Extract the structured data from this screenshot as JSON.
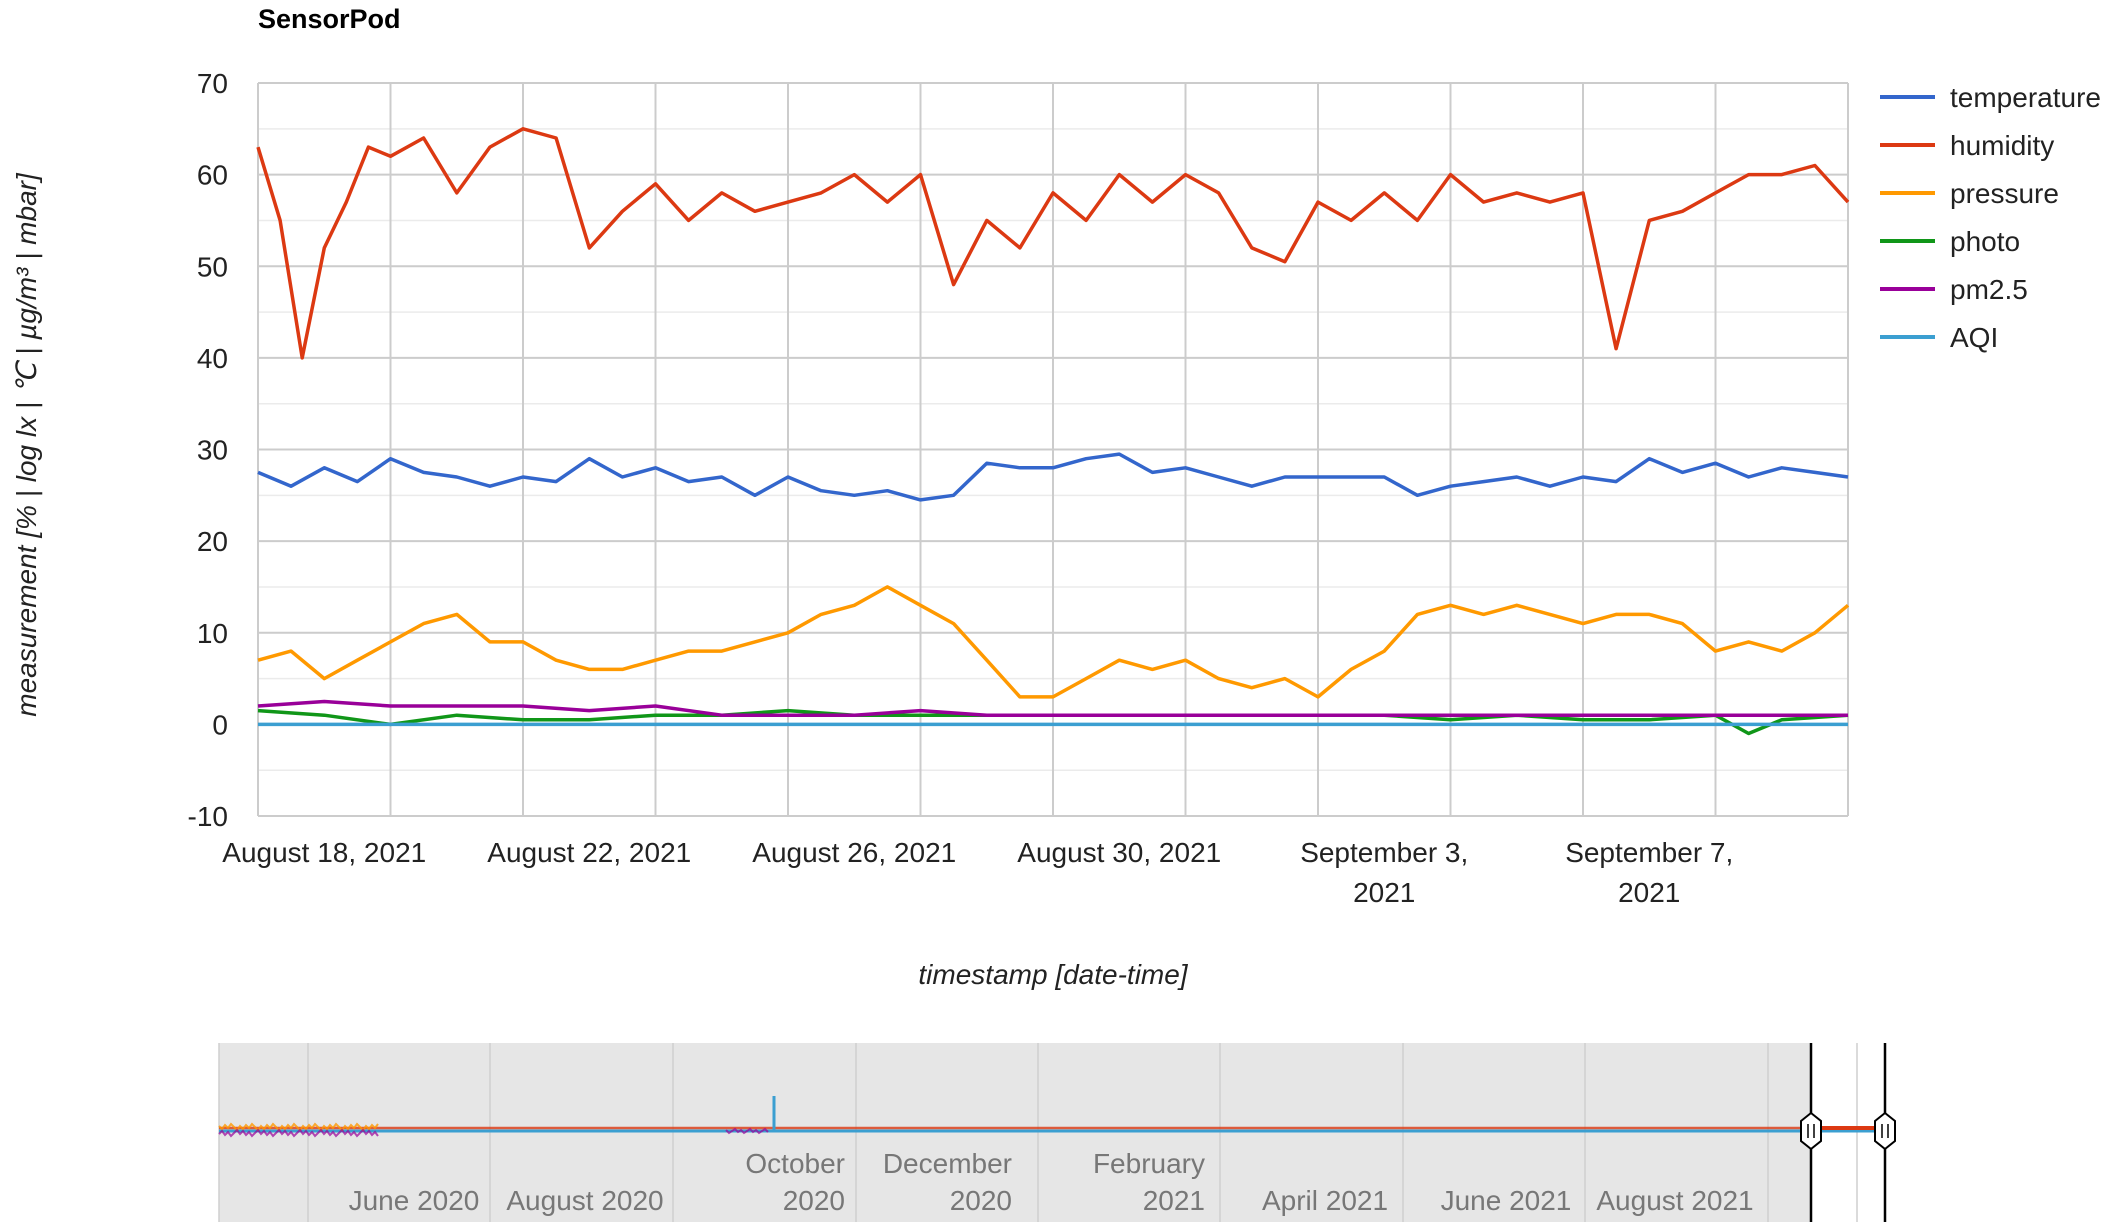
{
  "chart_title": "SensorPod",
  "chart_data": {
    "type": "line",
    "title": "SensorPod",
    "xlabel": "timestamp [date-time]",
    "ylabel": "measurement [% | log lx | ℃ | µg/m³ | mbar]",
    "ylim": [
      -10,
      70
    ],
    "yticks": [
      "70",
      "60",
      "50",
      "40",
      "30",
      "20",
      "10",
      "0",
      "-10"
    ],
    "xlim": [
      "2021-08-17",
      "2021-09-10"
    ],
    "xtick_labels": [
      {
        "date": "2021-08-18",
        "lines": [
          "August 18, 2021"
        ]
      },
      {
        "date": "2021-08-22",
        "lines": [
          "August 22, 2021"
        ]
      },
      {
        "date": "2021-08-26",
        "lines": [
          "August 26, 2021"
        ]
      },
      {
        "date": "2021-08-30",
        "lines": [
          "August 30, 2021"
        ]
      },
      {
        "date": "2021-09-03",
        "lines": [
          "September 3,",
          "2021"
        ]
      },
      {
        "date": "2021-09-07",
        "lines": [
          "September 7,",
          "2021"
        ]
      }
    ],
    "grid": true,
    "legend_position": "right",
    "series": [
      {
        "name": "temperature",
        "color": "#3366cc",
        "x": [
          "2021-08-17",
          "2021-08-17T12:00",
          "2021-08-18",
          "2021-08-18T12:00",
          "2021-08-19",
          "2021-08-19T12:00",
          "2021-08-20",
          "2021-08-20T12:00",
          "2021-08-21",
          "2021-08-21T12:00",
          "2021-08-22",
          "2021-08-22T12:00",
          "2021-08-23",
          "2021-08-23T12:00",
          "2021-08-24",
          "2021-08-24T12:00",
          "2021-08-25",
          "2021-08-25T12:00",
          "2021-08-26",
          "2021-08-26T12:00",
          "2021-08-27",
          "2021-08-27T12:00",
          "2021-08-28",
          "2021-08-28T12:00",
          "2021-08-29",
          "2021-08-29T12:00",
          "2021-08-30",
          "2021-08-30T12:00",
          "2021-08-31",
          "2021-08-31T12:00",
          "2021-09-01",
          "2021-09-01T12:00",
          "2021-09-02",
          "2021-09-02T12:00",
          "2021-09-03",
          "2021-09-03T12:00",
          "2021-09-04",
          "2021-09-04T12:00",
          "2021-09-05",
          "2021-09-05T12:00",
          "2021-09-06",
          "2021-09-06T12:00",
          "2021-09-07",
          "2021-09-07T12:00",
          "2021-09-08",
          "2021-09-08T12:00",
          "2021-09-09",
          "2021-09-09T12:00",
          "2021-09-10"
        ],
        "y": [
          27.5,
          26,
          28,
          26.5,
          29,
          27.5,
          27,
          26,
          27,
          26.5,
          29,
          27,
          28,
          26.5,
          27,
          25,
          27,
          25.5,
          25,
          25.5,
          24.5,
          25,
          28.5,
          28,
          28,
          29,
          29.5,
          27.5,
          28,
          27,
          26,
          27,
          27,
          27,
          27,
          25,
          26,
          26.5,
          27,
          26,
          27,
          26.5,
          29,
          27.5,
          28.5,
          27,
          28,
          27.5,
          27
        ]
      },
      {
        "name": "humidity",
        "color": "#dc3912",
        "x": [
          "2021-08-17",
          "2021-08-17T08:00",
          "2021-08-17T16:00",
          "2021-08-18",
          "2021-08-18T08:00",
          "2021-08-18T16:00",
          "2021-08-19",
          "2021-08-19T12:00",
          "2021-08-20",
          "2021-08-20T12:00",
          "2021-08-21",
          "2021-08-21T12:00",
          "2021-08-22",
          "2021-08-22T12:00",
          "2021-08-23",
          "2021-08-23T12:00",
          "2021-08-24",
          "2021-08-24T12:00",
          "2021-08-25",
          "2021-08-25T12:00",
          "2021-08-26",
          "2021-08-26T12:00",
          "2021-08-27",
          "2021-08-27T12:00",
          "2021-08-28",
          "2021-08-28T12:00",
          "2021-08-29",
          "2021-08-29T12:00",
          "2021-08-30",
          "2021-08-30T12:00",
          "2021-08-31",
          "2021-08-31T12:00",
          "2021-09-01",
          "2021-09-01T12:00",
          "2021-09-02",
          "2021-09-02T12:00",
          "2021-09-03",
          "2021-09-03T12:00",
          "2021-09-04",
          "2021-09-04T12:00",
          "2021-09-05",
          "2021-09-05T12:00",
          "2021-09-06",
          "2021-09-06T12:00",
          "2021-09-07",
          "2021-09-07T12:00",
          "2021-09-08",
          "2021-09-08T12:00",
          "2021-09-09",
          "2021-09-09T12:00",
          "2021-09-10"
        ],
        "y": [
          63,
          55,
          40,
          52,
          57,
          63,
          62,
          64,
          58,
          63,
          65,
          64,
          52,
          56,
          59,
          55,
          58,
          56,
          57,
          58,
          60,
          57,
          60,
          48,
          55,
          52,
          58,
          55,
          60,
          57,
          60,
          58,
          52,
          50.5,
          57,
          55,
          58,
          55,
          60,
          57,
          58,
          57,
          58,
          41,
          55,
          56,
          58,
          60,
          60,
          61,
          57
        ]
      },
      {
        "name": "pressure",
        "color": "#ff9900",
        "x": [
          "2021-08-17",
          "2021-08-17T12:00",
          "2021-08-18",
          "2021-08-18T12:00",
          "2021-08-19",
          "2021-08-19T12:00",
          "2021-08-20",
          "2021-08-20T12:00",
          "2021-08-21",
          "2021-08-21T12:00",
          "2021-08-22",
          "2021-08-22T12:00",
          "2021-08-23",
          "2021-08-23T12:00",
          "2021-08-24",
          "2021-08-24T12:00",
          "2021-08-25",
          "2021-08-25T12:00",
          "2021-08-26",
          "2021-08-26T12:00",
          "2021-08-27",
          "2021-08-27T12:00",
          "2021-08-28",
          "2021-08-28T12:00",
          "2021-08-29",
          "2021-08-29T12:00",
          "2021-08-30",
          "2021-08-30T12:00",
          "2021-08-31",
          "2021-08-31T12:00",
          "2021-09-01",
          "2021-09-01T12:00",
          "2021-09-02",
          "2021-09-02T12:00",
          "2021-09-03",
          "2021-09-03T12:00",
          "2021-09-04",
          "2021-09-04T12:00",
          "2021-09-05",
          "2021-09-05T12:00",
          "2021-09-06",
          "2021-09-06T12:00",
          "2021-09-07",
          "2021-09-07T12:00",
          "2021-09-08",
          "2021-09-08T12:00",
          "2021-09-09",
          "2021-09-09T12:00",
          "2021-09-10"
        ],
        "y": [
          7,
          8,
          5,
          7,
          9,
          11,
          12,
          9,
          9,
          7,
          6,
          6,
          7,
          8,
          8,
          9,
          10,
          12,
          13,
          15,
          13,
          11,
          7,
          3,
          3,
          5,
          7,
          6,
          7,
          5,
          4,
          5,
          3,
          6,
          8,
          12,
          13,
          12,
          13,
          12,
          11,
          12,
          12,
          11,
          8,
          9,
          8,
          10,
          13
        ]
      },
      {
        "name": "photo",
        "color": "#109618",
        "x": [
          "2021-08-17",
          "2021-08-18",
          "2021-08-19",
          "2021-08-20",
          "2021-08-21",
          "2021-08-22",
          "2021-08-23",
          "2021-08-24",
          "2021-08-25",
          "2021-08-26",
          "2021-08-27",
          "2021-08-28",
          "2021-08-29",
          "2021-08-30",
          "2021-08-31",
          "2021-09-01",
          "2021-09-02",
          "2021-09-03",
          "2021-09-04",
          "2021-09-05",
          "2021-09-06",
          "2021-09-07",
          "2021-09-08",
          "2021-09-08T12:00",
          "2021-09-09",
          "2021-09-10"
        ],
        "y": [
          1.5,
          1,
          0,
          1,
          0.5,
          0.5,
          1,
          1,
          1.5,
          1,
          1,
          1,
          1,
          1,
          1,
          1,
          1,
          1,
          0.5,
          1,
          0.5,
          0.5,
          1,
          -1,
          0.5,
          1
        ]
      },
      {
        "name": "pm2.5",
        "color": "#990099",
        "x": [
          "2021-08-17",
          "2021-08-18",
          "2021-08-19",
          "2021-08-20",
          "2021-08-21",
          "2021-08-22",
          "2021-08-23",
          "2021-08-24",
          "2021-08-25",
          "2021-08-26",
          "2021-08-27",
          "2021-08-28",
          "2021-08-29",
          "2021-08-30",
          "2021-08-31",
          "2021-09-01",
          "2021-09-02",
          "2021-09-03",
          "2021-09-04",
          "2021-09-05",
          "2021-09-06",
          "2021-09-07",
          "2021-09-08",
          "2021-09-09",
          "2021-09-10"
        ],
        "y": [
          2,
          2.5,
          2,
          2,
          2,
          1.5,
          2,
          1,
          1,
          1,
          1.5,
          1,
          1,
          1,
          1,
          1,
          1,
          1,
          1,
          1,
          1,
          1,
          1,
          1,
          1
        ]
      },
      {
        "name": "AQI",
        "color": "#3b9fd1",
        "x": [
          "2021-08-17",
          "2021-09-10"
        ],
        "y": [
          0,
          0
        ]
      }
    ]
  },
  "navigator": {
    "labels": [
      {
        "lines": [
          "June 2020"
        ]
      },
      {
        "lines": [
          "August 2020"
        ]
      },
      {
        "lines": [
          "October",
          "2020"
        ]
      },
      {
        "lines": [
          "December",
          "2020"
        ]
      },
      {
        "lines": [
          "February",
          "2021"
        ]
      },
      {
        "lines": [
          "April 2021"
        ]
      },
      {
        "lines": [
          "June 2021"
        ]
      },
      {
        "lines": [
          "August 2021"
        ]
      }
    ],
    "selected_range": [
      "2021-08-17",
      "2021-09-10"
    ],
    "background": "#e6e6e6"
  }
}
